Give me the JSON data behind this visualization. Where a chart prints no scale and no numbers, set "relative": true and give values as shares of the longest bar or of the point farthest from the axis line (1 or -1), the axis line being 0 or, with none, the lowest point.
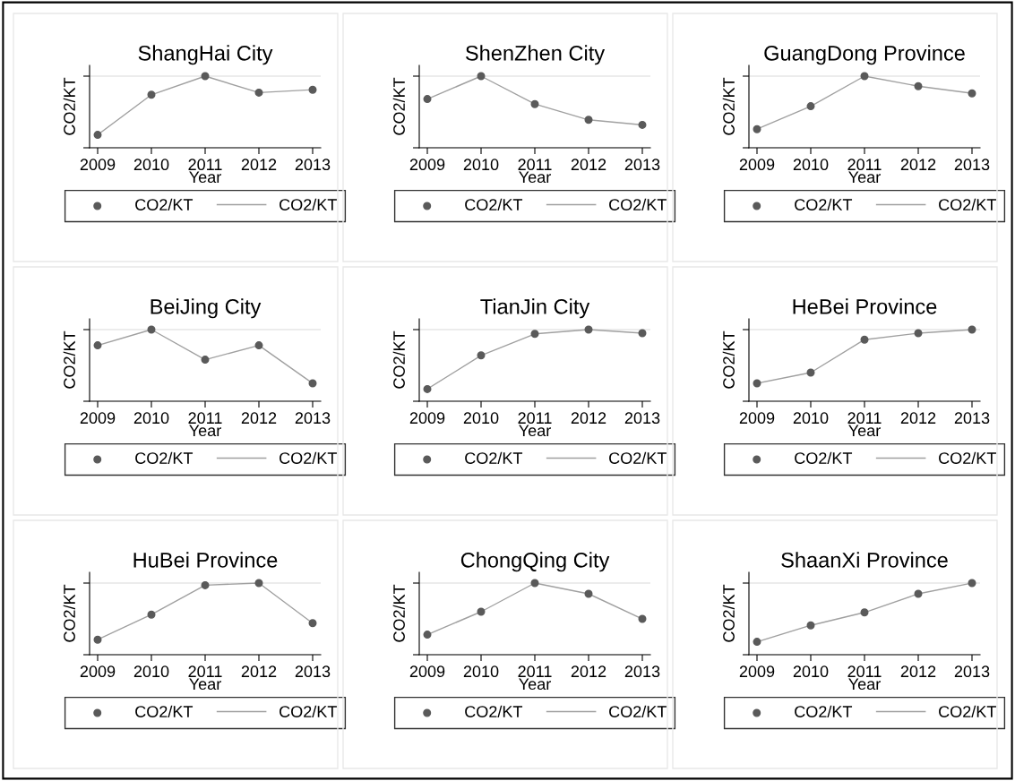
{
  "chart_data": [
    {
      "type": "line",
      "title": "ShangHai City",
      "xlabel": "Year",
      "ylabel": "CO2/KT",
      "relative": true,
      "grid": "y",
      "legend": "bottom",
      "categories": [
        "2009",
        "2010",
        "2011",
        "2012",
        "2013"
      ],
      "series": [
        {
          "name": "CO2/KT",
          "type": "scatter",
          "marker": "circle",
          "color": "#5a5a5a",
          "values": [
            0.18,
            0.74,
            1,
            0.77,
            0.81
          ]
        },
        {
          "name": "CO2/KT",
          "color": "#a0a0a0",
          "values": [
            0.18,
            0.74,
            1,
            0.77,
            0.81
          ]
        }
      ]
    },
    {
      "type": "line",
      "title": "ShenZhen City",
      "xlabel": "Year",
      "ylabel": "CO2/KT",
      "relative": true,
      "grid": "y",
      "legend": "bottom",
      "categories": [
        "2009",
        "2010",
        "2011",
        "2012",
        "2013"
      ],
      "series": [
        {
          "name": "CO2/KT",
          "type": "scatter",
          "marker": "circle",
          "color": "#5a5a5a",
          "values": [
            0.68,
            1,
            0.61,
            0.39,
            0.32
          ]
        },
        {
          "name": "CO2/KT",
          "color": "#a0a0a0",
          "values": [
            0.68,
            1,
            0.61,
            0.39,
            0.32
          ]
        }
      ]
    },
    {
      "type": "line",
      "title": "GuangDong Province",
      "xlabel": "Year",
      "ylabel": "CO2/KT",
      "relative": true,
      "grid": "y",
      "legend": "bottom",
      "categories": [
        "2009",
        "2010",
        "2011",
        "2012",
        "2013"
      ],
      "series": [
        {
          "name": "CO2/KT",
          "type": "scatter",
          "marker": "circle",
          "color": "#5a5a5a",
          "values": [
            0.26,
            0.58,
            1,
            0.86,
            0.76
          ]
        },
        {
          "name": "CO2/KT",
          "color": "#a0a0a0",
          "values": [
            0.26,
            0.58,
            1,
            0.86,
            0.76
          ]
        }
      ]
    },
    {
      "type": "line",
      "title": "BeiJing City",
      "xlabel": "Year",
      "ylabel": "CO2/KT",
      "relative": true,
      "grid": "y",
      "legend": "bottom",
      "categories": [
        "2009",
        "2010",
        "2011",
        "2012",
        "2013"
      ],
      "series": [
        {
          "name": "CO2/KT",
          "type": "scatter",
          "marker": "circle",
          "color": "#5a5a5a",
          "values": [
            0.78,
            1,
            0.58,
            0.78,
            0.25
          ]
        },
        {
          "name": "CO2/KT",
          "color": "#a0a0a0",
          "values": [
            0.78,
            1,
            0.58,
            0.78,
            0.25
          ]
        }
      ]
    },
    {
      "type": "line",
      "title": "TianJin City",
      "xlabel": "Year",
      "ylabel": "CO2/KT",
      "relative": true,
      "grid": "y",
      "legend": "bottom",
      "categories": [
        "2009",
        "2010",
        "2011",
        "2012",
        "2013"
      ],
      "series": [
        {
          "name": "CO2/KT",
          "type": "scatter",
          "marker": "circle",
          "color": "#5a5a5a",
          "values": [
            0.17,
            0.64,
            0.94,
            1,
            0.95
          ]
        },
        {
          "name": "CO2/KT",
          "color": "#a0a0a0",
          "values": [
            0.17,
            0.64,
            0.94,
            1,
            0.95
          ]
        }
      ]
    },
    {
      "type": "line",
      "title": "HeBei Province",
      "xlabel": "Year",
      "ylabel": "CO2/KT",
      "relative": true,
      "grid": "y",
      "legend": "bottom",
      "categories": [
        "2009",
        "2010",
        "2011",
        "2012",
        "2013"
      ],
      "series": [
        {
          "name": "CO2/KT",
          "type": "scatter",
          "marker": "circle",
          "color": "#5a5a5a",
          "values": [
            0.25,
            0.4,
            0.86,
            0.95,
            1
          ]
        },
        {
          "name": "CO2/KT",
          "color": "#a0a0a0",
          "values": [
            0.25,
            0.4,
            0.86,
            0.95,
            1
          ]
        }
      ]
    },
    {
      "type": "line",
      "title": "HuBei Province",
      "xlabel": "Year",
      "ylabel": "CO2/KT",
      "relative": true,
      "grid": "y",
      "legend": "bottom",
      "categories": [
        "2009",
        "2010",
        "2011",
        "2012",
        "2013"
      ],
      "series": [
        {
          "name": "CO2/KT",
          "type": "scatter",
          "marker": "circle",
          "color": "#5a5a5a",
          "values": [
            0.21,
            0.56,
            0.97,
            1,
            0.44
          ]
        },
        {
          "name": "CO2/KT",
          "color": "#a0a0a0",
          "values": [
            0.21,
            0.56,
            0.97,
            1,
            0.44
          ]
        }
      ]
    },
    {
      "type": "line",
      "title": "ChongQing City",
      "xlabel": "Year",
      "ylabel": "CO2/KT",
      "relative": true,
      "grid": "y",
      "legend": "bottom",
      "categories": [
        "2009",
        "2010",
        "2011",
        "2012",
        "2013"
      ],
      "series": [
        {
          "name": "CO2/KT",
          "type": "scatter",
          "marker": "circle",
          "color": "#5a5a5a",
          "values": [
            0.28,
            0.6,
            1,
            0.85,
            0.5
          ]
        },
        {
          "name": "CO2/KT",
          "color": "#a0a0a0",
          "values": [
            0.28,
            0.6,
            1,
            0.85,
            0.5
          ]
        }
      ]
    },
    {
      "type": "line",
      "title": "ShaanXi Province",
      "xlabel": "Year",
      "ylabel": "CO2/KT",
      "relative": true,
      "grid": "y",
      "legend": "bottom",
      "categories": [
        "2009",
        "2010",
        "2011",
        "2012",
        "2013"
      ],
      "series": [
        {
          "name": "CO2/KT",
          "type": "scatter",
          "marker": "circle",
          "color": "#5a5a5a",
          "values": [
            0.18,
            0.41,
            0.59,
            0.85,
            1
          ]
        },
        {
          "name": "CO2/KT",
          "color": "#a0a0a0",
          "values": [
            0.18,
            0.41,
            0.59,
            0.85,
            1
          ]
        }
      ]
    }
  ]
}
